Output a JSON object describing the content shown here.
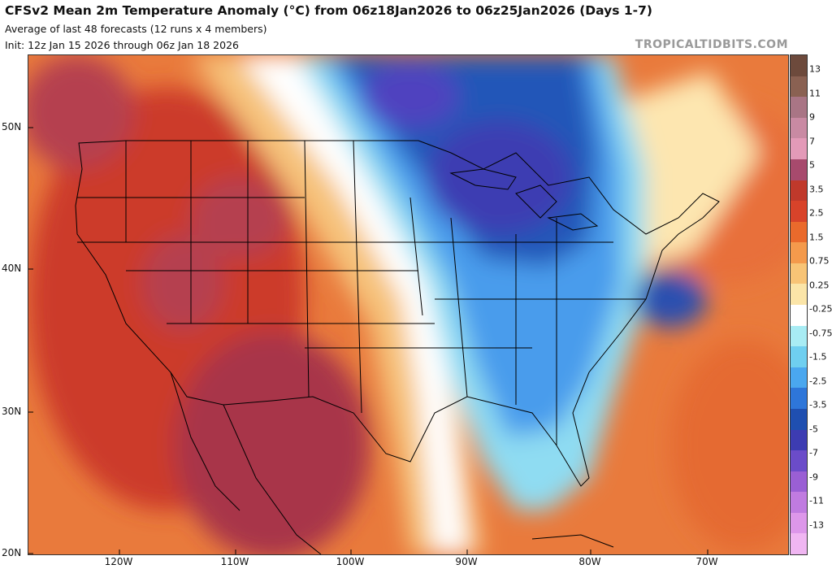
{
  "header": {
    "title": "CFSv2 Mean 2m Temperature Anomaly (°C) from 06z18Jan2026 to 06z25Jan2026 (Days 1-7)",
    "subtitle": "Average of last 48 forecasts (12 runs x 4 members)",
    "init": "Init: 12z Jan 15 2026 through 06z Jan 18 2026",
    "watermark": "TROPICALTIDBITS.COM"
  },
  "map": {
    "region": "Continental United States",
    "lat_labels": [
      "50N",
      "40N",
      "30N",
      "20N"
    ],
    "lon_labels": [
      "120W",
      "110W",
      "100W",
      "90W",
      "80W",
      "70W"
    ],
    "anomaly_features": [
      {
        "area": "Western US / Great Basin / Southwest",
        "sign": "warm",
        "range_c": "3.5 to 7"
      },
      {
        "area": "Northern Mexico",
        "sign": "warm",
        "range_c": "5 to 7"
      },
      {
        "area": "Northern Great Plains",
        "sign": "near normal",
        "range_c": "-0.25 to 0.25"
      },
      {
        "area": "Upper Midwest / Great Lakes / Ontario",
        "sign": "cold",
        "range_c": "-3.5 to -5"
      },
      {
        "area": "Mid-Atlantic coast",
        "sign": "cold",
        "range_c": "-2.5 to -3.5"
      },
      {
        "area": "Southeast US / Florida",
        "sign": "cold",
        "range_c": "-0.75 to -2.5"
      },
      {
        "area": "New England / Atlantic Canada",
        "sign": "warm",
        "range_c": "1.5 to 3.5"
      }
    ]
  },
  "colorbar": {
    "labels": [
      "13",
      "11",
      "9",
      "7",
      "5",
      "3.5",
      "2.5",
      "1.5",
      "0.75",
      "0.25",
      "-0.25",
      "-0.75",
      "-1.5",
      "-2.5",
      "-3.5",
      "-5",
      "-7",
      "-9",
      "-11",
      "-13"
    ],
    "colors": [
      "#6d4a3c",
      "#8a6152",
      "#a97585",
      "#c98aa3",
      "#e39ab8",
      "#a74a6d",
      "#c0392b",
      "#d8432a",
      "#ea6a2c",
      "#f49a4c",
      "#f8c476",
      "#fbe5a8",
      "#ffffff",
      "#a8ecf4",
      "#6fcff0",
      "#4aa7ef",
      "#2e76d9",
      "#1f4fb0",
      "#3d3cb2",
      "#6b4cc9",
      "#9a5fd4",
      "#c07be0",
      "#dd97ea",
      "#f0b6f2"
    ]
  }
}
